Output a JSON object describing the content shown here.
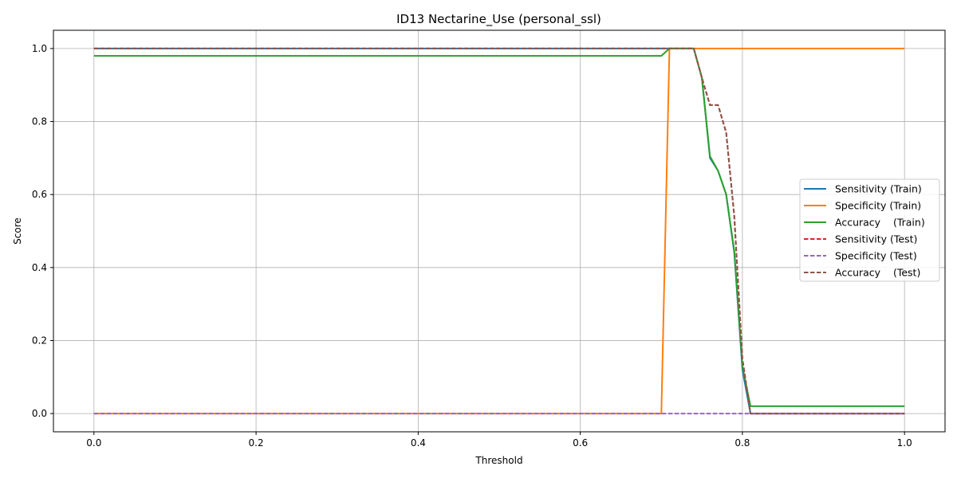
{
  "chart_data": {
    "type": "line",
    "title": "ID13 Nectarine_Use (personal_ssl)",
    "xlabel": "Threshold",
    "ylabel": "Score",
    "xlim": [
      -0.05,
      1.05
    ],
    "ylim": [
      -0.05,
      1.05
    ],
    "xticks": [
      0.0,
      0.2,
      0.4,
      0.6,
      0.8,
      1.0
    ],
    "xtick_labels": [
      "0.0",
      "0.2",
      "0.4",
      "0.6",
      "0.8",
      "1.0"
    ],
    "yticks": [
      0.0,
      0.2,
      0.4,
      0.6,
      0.8,
      1.0
    ],
    "ytick_labels": [
      "0.0",
      "0.2",
      "0.4",
      "0.6",
      "0.8",
      "1.0"
    ],
    "grid": true,
    "legend_position": "center-right",
    "series": [
      {
        "name": "Sensitivity (Train)",
        "color": "#1f77b4",
        "style": "solid",
        "x": [
          0.0,
          0.7,
          0.71,
          0.74,
          0.75,
          0.76,
          0.77,
          0.78,
          0.79,
          0.8,
          0.81,
          1.0
        ],
        "y": [
          1.0,
          1.0,
          1.0,
          1.0,
          0.92,
          0.7,
          0.665,
          0.6,
          0.44,
          0.12,
          0.0,
          0.0
        ]
      },
      {
        "name": "Specificity (Train)",
        "color": "#ff7f0e",
        "style": "solid",
        "x": [
          0.0,
          0.7,
          0.71,
          1.0
        ],
        "y": [
          0.0,
          0.0,
          1.0,
          1.0
        ]
      },
      {
        "name": "Accuracy    (Train)",
        "color": "#2ca02c",
        "style": "solid",
        "x": [
          0.0,
          0.7,
          0.71,
          0.74,
          0.75,
          0.76,
          0.77,
          0.78,
          0.79,
          0.8,
          0.81,
          1.0
        ],
        "y": [
          0.98,
          0.98,
          1.0,
          1.0,
          0.92,
          0.705,
          0.665,
          0.6,
          0.445,
          0.13,
          0.02,
          0.02
        ]
      },
      {
        "name": "Sensitivity (Test)",
        "color": "#d62728",
        "style": "dashed",
        "x": [
          0.0,
          0.74,
          0.75,
          0.76,
          0.77,
          0.78,
          0.79,
          0.8,
          0.81,
          1.0
        ],
        "y": [
          1.0,
          1.0,
          0.92,
          0.845,
          0.845,
          0.77,
          0.54,
          0.15,
          0.0,
          0.0
        ]
      },
      {
        "name": "Specificity (Test)",
        "color": "#9467bd",
        "style": "dashed",
        "x": [
          0.0,
          1.0
        ],
        "y": [
          0.0,
          0.0
        ]
      },
      {
        "name": "Accuracy    (Test)",
        "color": "#8c564b",
        "style": "dashed",
        "x": [
          0.0,
          0.74,
          0.75,
          0.76,
          0.77,
          0.78,
          0.79,
          0.8,
          0.81,
          1.0
        ],
        "y": [
          1.0,
          1.0,
          0.92,
          0.845,
          0.845,
          0.77,
          0.54,
          0.15,
          0.0,
          0.0
        ]
      }
    ]
  }
}
